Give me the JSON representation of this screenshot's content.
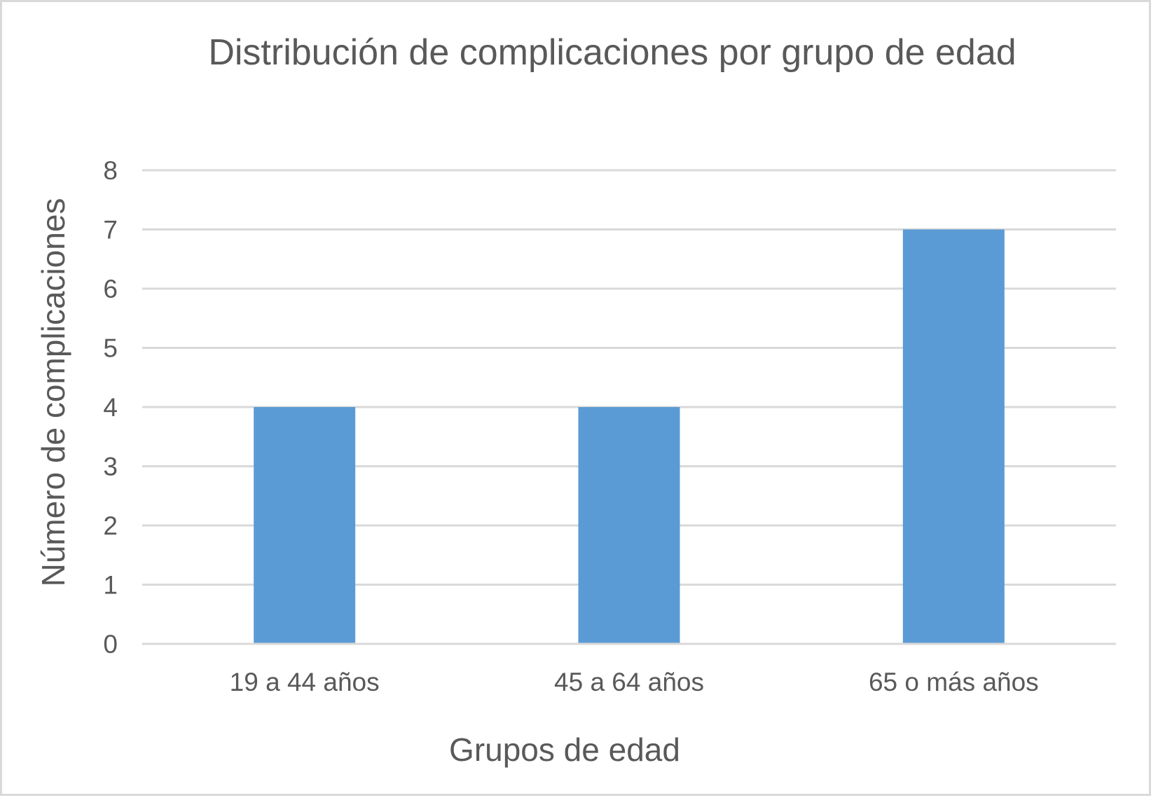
{
  "chart_data": {
    "type": "bar",
    "title": "Distribución de complicaciones por grupo de edad",
    "xlabel": "Grupos de edad",
    "ylabel": "Número de complicaciones",
    "categories": [
      "19 a 44 años",
      "45 a 64 años",
      "65 o más años"
    ],
    "values": [
      4,
      4,
      7
    ],
    "ylim": [
      0,
      8
    ],
    "yticks": [
      "0",
      "1",
      "2",
      "3",
      "4",
      "5",
      "6",
      "7",
      "8"
    ],
    "grid": true,
    "legend": "none",
    "bar_color": "#5b9bd5",
    "gridline_color": "#d9d9d9",
    "text_color": "#595959"
  }
}
